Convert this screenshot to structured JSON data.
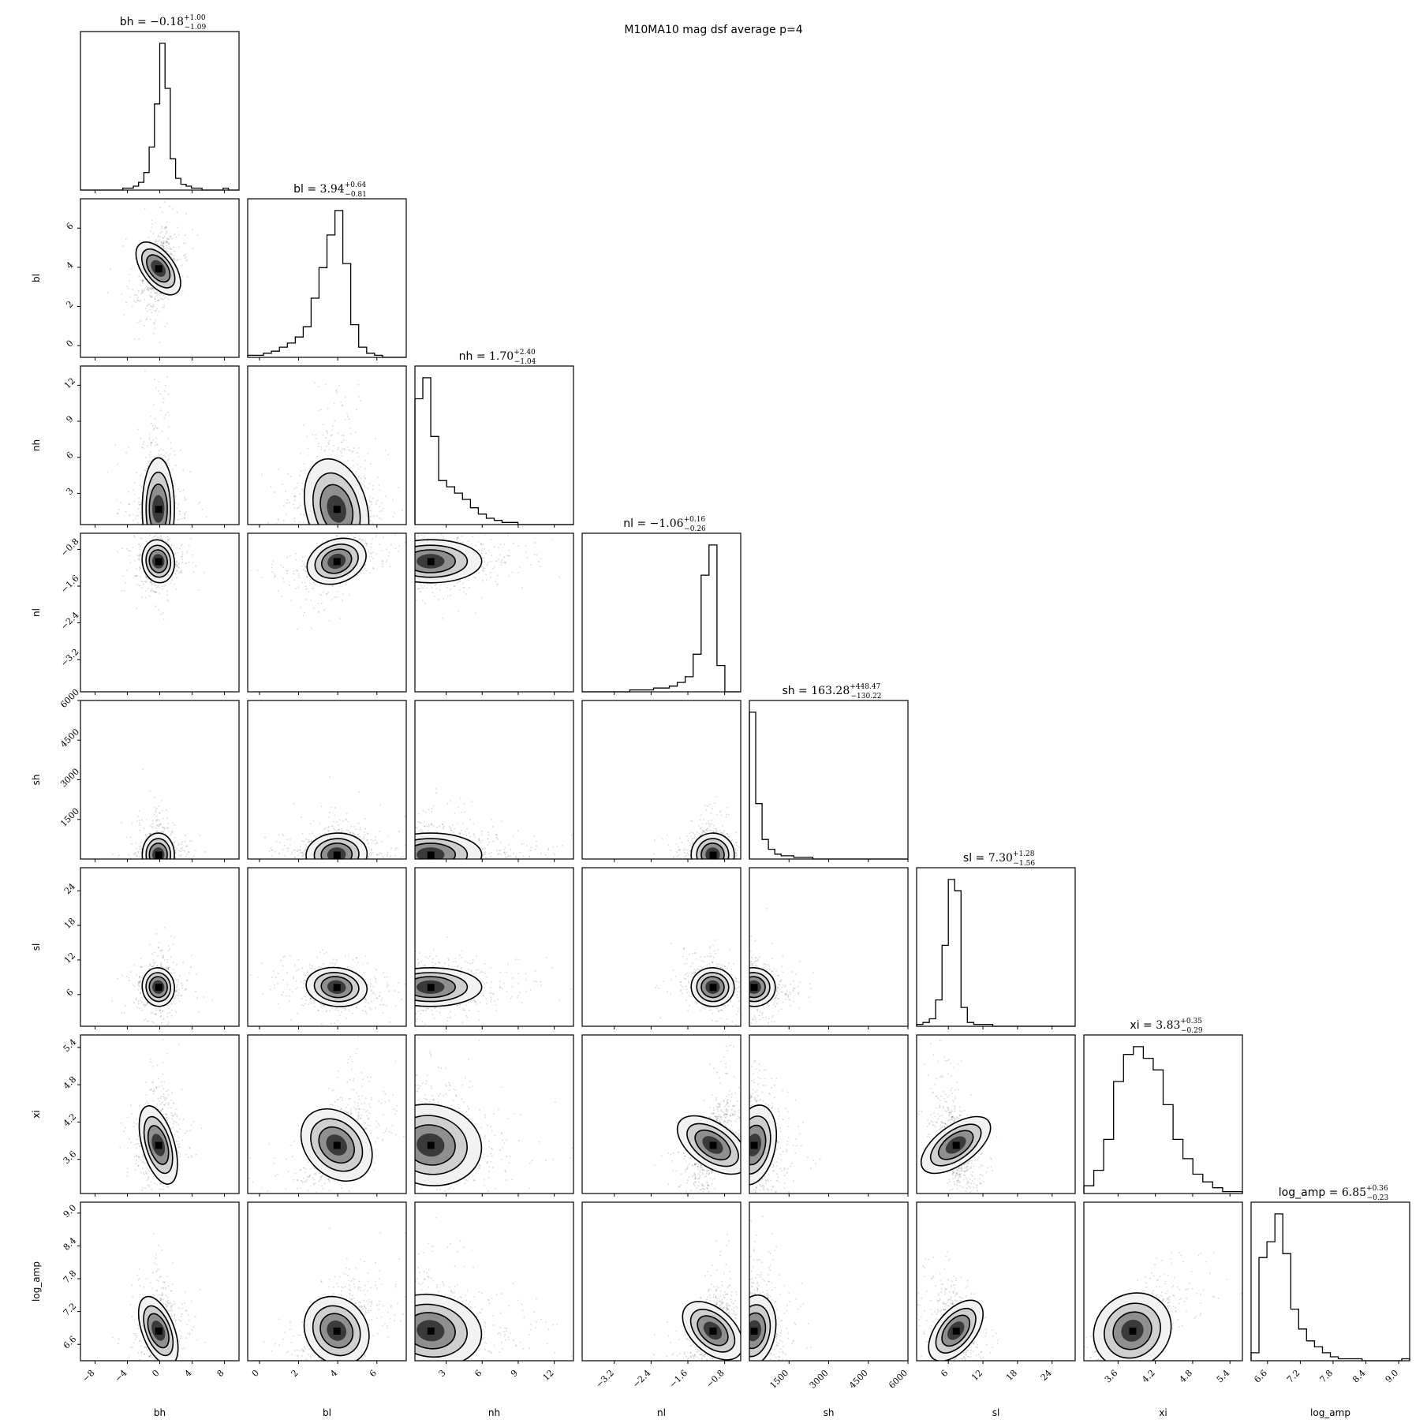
{
  "title": "M10MA10 mag dsf average p=4",
  "chart_data": {
    "type": "corner",
    "title": "M10MA10 mag dsf average p=4",
    "parameters": [
      {
        "name": "bh",
        "median": "−0.18",
        "plus": "1.00",
        "minus": "1.09",
        "range": [
          -9.8,
          9.8
        ],
        "ticks": [
          -8,
          -4,
          0,
          4,
          8
        ],
        "tick_labels": [
          "−8",
          "−4",
          "0",
          "4",
          "8"
        ],
        "sigma": 0.8
      },
      {
        "name": "bl",
        "median": "3.94",
        "plus": "0.64",
        "minus": "0.81",
        "range": [
          -0.6,
          7.5
        ],
        "ticks": [
          0,
          2,
          4,
          6
        ],
        "tick_labels": [
          "0",
          "2",
          "4",
          "6"
        ],
        "sigma": 0.7
      },
      {
        "name": "nh",
        "median": "1.70",
        "plus": "2.40",
        "minus": "1.04",
        "range": [
          0.4,
          13.6
        ],
        "ticks": [
          3,
          6,
          9,
          12
        ],
        "tick_labels": [
          "3",
          "6",
          "9",
          "12"
        ],
        "sigma": 2.0
      },
      {
        "name": "nl",
        "median": "−1.06",
        "plus": "0.16",
        "minus": "0.26",
        "range": [
          -3.9,
          -0.45
        ],
        "ticks": [
          -3.2,
          -2.4,
          -1.6,
          -0.8
        ],
        "tick_labels": [
          "−3.2",
          "−2.4",
          "−1.6",
          "−0.8"
        ],
        "sigma": 0.2
      },
      {
        "name": "sh",
        "median": "163.28",
        "plus": "448.47",
        "minus": "130.22",
        "range": [
          0,
          6000
        ],
        "ticks": [
          1500,
          3000,
          4500,
          6000
        ],
        "tick_labels": [
          "1500",
          "3000",
          "4500",
          "6000"
        ],
        "sigma": 350
      },
      {
        "name": "sl",
        "median": "7.30",
        "plus": "1.28",
        "minus": "1.56",
        "range": [
          0.5,
          28
        ],
        "ticks": [
          6,
          12,
          18,
          24
        ],
        "tick_labels": [
          "6",
          "12",
          "18",
          "24"
        ],
        "sigma": 1.4
      },
      {
        "name": "xi",
        "median": "3.83",
        "plus": "0.35",
        "minus": "0.29",
        "range": [
          3.05,
          5.6
        ],
        "ticks": [
          3.6,
          4.2,
          4.8,
          5.4
        ],
        "tick_labels": [
          "3.6",
          "4.2",
          "4.8",
          "5.4"
        ],
        "sigma": 0.3
      },
      {
        "name": "log_amp",
        "median": "6.85",
        "plus": "0.36",
        "minus": "0.23",
        "range": [
          6.3,
          9.2
        ],
        "ticks": [
          6.6,
          7.2,
          7.8,
          8.4,
          9.0
        ],
        "tick_labels": [
          "6.6",
          "7.2",
          "7.8",
          "8.4",
          "9.0"
        ],
        "sigma": 0.3
      }
    ],
    "histograms": [
      {
        "param": "bh",
        "counts": [
          0,
          0,
          0,
          0,
          0,
          0,
          0,
          0,
          1,
          1,
          2,
          4,
          9,
          22,
          44,
          75,
          52,
          16,
          6,
          3,
          2,
          1,
          1,
          0,
          0,
          0,
          0,
          1,
          0,
          0
        ]
      },
      {
        "param": "bl",
        "counts": [
          1,
          1,
          2,
          3,
          5,
          7,
          10,
          15,
          29,
          44,
          60,
          72,
          46,
          16,
          5,
          2,
          1,
          0,
          0,
          0
        ]
      },
      {
        "param": "nh",
        "counts": [
          60,
          70,
          42,
          21,
          18,
          15,
          12,
          8,
          5,
          3,
          2,
          1,
          1,
          0,
          0,
          0,
          0,
          0,
          0,
          0
        ]
      },
      {
        "param": "nl",
        "counts": [
          0,
          0,
          0,
          0,
          0,
          0,
          1,
          1,
          1,
          2,
          2,
          3,
          5,
          8,
          20,
          62,
          78,
          14,
          0,
          0
        ]
      },
      {
        "param": "sh",
        "counts": [
          90,
          34,
          12,
          6,
          3,
          2,
          2,
          1,
          1,
          1,
          0,
          0,
          0,
          0,
          0,
          0,
          0,
          0,
          0,
          0,
          0,
          0,
          0,
          0,
          0
        ]
      },
      {
        "param": "sl",
        "counts": [
          1,
          2,
          4,
          14,
          43,
          78,
          72,
          10,
          2,
          1,
          1,
          1,
          0,
          0,
          0,
          0,
          0,
          0,
          0,
          0,
          0,
          0,
          0,
          0,
          0
        ]
      },
      {
        "param": "xi",
        "counts": [
          4,
          12,
          28,
          58,
          72,
          76,
          70,
          64,
          46,
          28,
          18,
          10,
          6,
          3,
          1,
          1
        ]
      },
      {
        "param": "log_amp",
        "counts": [
          4,
          52,
          60,
          74,
          54,
          26,
          16,
          10,
          7,
          4,
          2,
          1,
          1,
          1,
          0,
          0,
          0,
          0,
          0,
          1
        ]
      }
    ],
    "correlations": [
      {
        "x": "bh",
        "y": "bl",
        "rho": 0.35
      },
      {
        "x": "bh",
        "y": "nh",
        "rho": 0.0
      },
      {
        "x": "bh",
        "y": "nl",
        "rho": 0.1
      },
      {
        "x": "bh",
        "y": "sh",
        "rho": 0.0
      },
      {
        "x": "bh",
        "y": "sl",
        "rho": 0.1
      },
      {
        "x": "bh",
        "y": "xi",
        "rho": 0.1
      },
      {
        "x": "bh",
        "y": "log_amp",
        "rho": 0.15
      },
      {
        "x": "bl",
        "y": "nh",
        "rho": 0.15
      },
      {
        "x": "bl",
        "y": "nl",
        "rho": 0.6
      },
      {
        "x": "bl",
        "y": "sh",
        "rho": 0.1
      },
      {
        "x": "bl",
        "y": "sl",
        "rho": -0.2
      },
      {
        "x": "bl",
        "y": "xi",
        "rho": 0.7
      },
      {
        "x": "bl",
        "y": "log_amp",
        "rho": 0.6
      },
      {
        "x": "nh",
        "y": "nl",
        "rho": 0.05
      },
      {
        "x": "nh",
        "y": "sh",
        "rho": 0.0
      },
      {
        "x": "nh",
        "y": "sl",
        "rho": 0.05
      },
      {
        "x": "nh",
        "y": "xi",
        "rho": -0.2
      },
      {
        "x": "nh",
        "y": "log_amp",
        "rho": -0.2
      },
      {
        "x": "nl",
        "y": "sh",
        "rho": 0.1
      },
      {
        "x": "nl",
        "y": "sl",
        "rho": -0.1
      },
      {
        "x": "nl",
        "y": "xi",
        "rho": 0.7
      },
      {
        "x": "nl",
        "y": "log_amp",
        "rho": 0.6
      },
      {
        "x": "sh",
        "y": "sl",
        "rho": -0.1
      },
      {
        "x": "sh",
        "y": "xi",
        "rho": -0.1
      },
      {
        "x": "sh",
        "y": "log_amp",
        "rho": -0.1
      },
      {
        "x": "sl",
        "y": "xi",
        "rho": -0.6
      },
      {
        "x": "sl",
        "y": "log_amp",
        "rho": -0.4
      },
      {
        "x": "xi",
        "y": "log_amp",
        "rho": 0.9
      }
    ],
    "contour_levels": 3,
    "grid": false,
    "legend": "none"
  }
}
